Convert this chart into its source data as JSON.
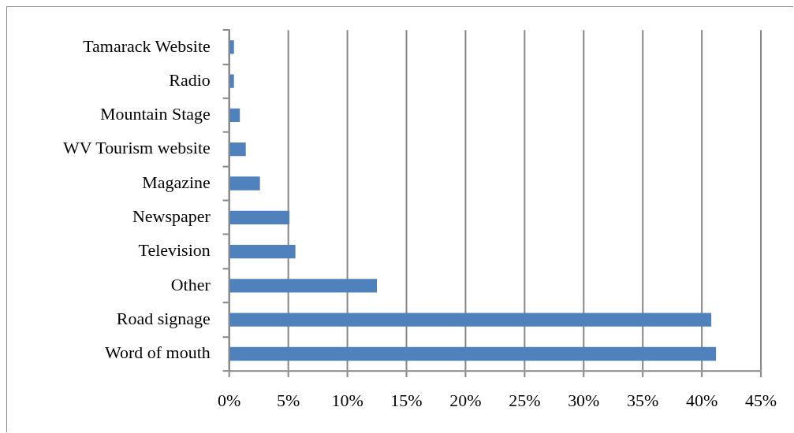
{
  "chart_data": {
    "type": "bar",
    "orientation": "horizontal",
    "categories": [
      "Tamarack Website",
      "Radio",
      "Mountain Stage",
      "WV Tourism website",
      "Magazine",
      "Newspaper",
      "Television",
      "Other",
      "Road signage",
      "Word of mouth"
    ],
    "values": [
      0.4,
      0.4,
      0.9,
      1.4,
      2.6,
      5.1,
      5.6,
      12.5,
      40.8,
      41.2
    ],
    "color": "#4f81bd",
    "xlim": [
      0,
      45
    ],
    "xticks": [
      {
        "value": 0,
        "label": "0%"
      },
      {
        "value": 5,
        "label": "5%"
      },
      {
        "value": 10,
        "label": "10%"
      },
      {
        "value": 15,
        "label": "15%"
      },
      {
        "value": 20,
        "label": "20%"
      },
      {
        "value": 25,
        "label": "25%"
      },
      {
        "value": 30,
        "label": "30%"
      },
      {
        "value": 35,
        "label": "35%"
      },
      {
        "value": 40,
        "label": "40%"
      },
      {
        "value": 45,
        "label": "45%"
      }
    ],
    "grid": "x"
  }
}
